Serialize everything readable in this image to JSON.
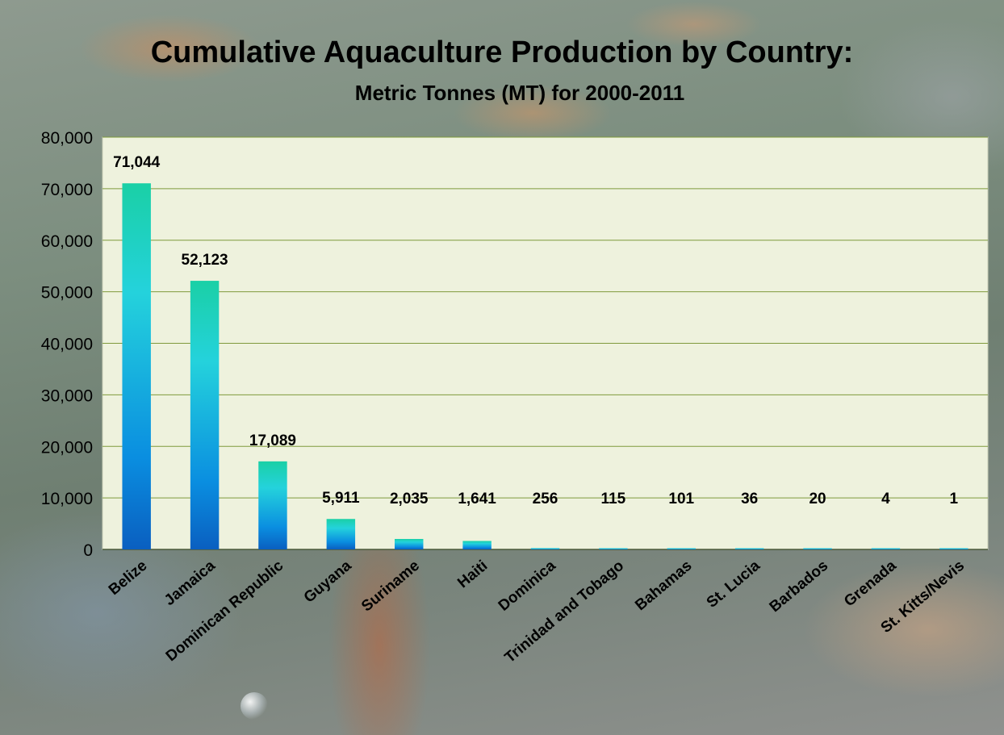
{
  "title": "Cumulative Aquaculture Production by Country:",
  "subtitle": "Metric Tonnes (MT) for 2000-2011",
  "colors": {
    "plot_background": "#eef2dd",
    "gridline": "#7f9a3c",
    "bar_top": "#1ad0a6",
    "bar_mid": "#24d2dc",
    "bar_bottom": "#0a5fc0"
  },
  "chart_data": {
    "type": "bar",
    "title": "Cumulative Aquaculture Production by Country:",
    "subtitle": "Metric Tonnes (MT) for 2000-2011",
    "xlabel": "",
    "ylabel": "",
    "ylim": [
      0,
      80000
    ],
    "yticks": [
      0,
      10000,
      20000,
      30000,
      40000,
      50000,
      60000,
      70000,
      80000
    ],
    "ytick_labels": [
      "0",
      "10,000",
      "20,000",
      "30,000",
      "40,000",
      "50,000",
      "60,000",
      "70,000",
      "80,000"
    ],
    "grid": true,
    "categories": [
      "Belize",
      "Jamaica",
      "Dominican Republic",
      "Guyana",
      "Suriname",
      "Haiti",
      "Dominica",
      "Trinidad and Tobago",
      "Bahamas",
      "St. Lucia",
      "Barbados",
      "Grenada",
      "St. Kitts/Nevis"
    ],
    "values": [
      71044,
      52123,
      17089,
      5911,
      2035,
      1641,
      256,
      115,
      101,
      36,
      20,
      4,
      1
    ],
    "value_labels": [
      "71,044",
      "52,123",
      "17,089",
      "5,911",
      "2,035",
      "1,641",
      "256",
      "115",
      "101",
      "36",
      "20",
      "4",
      "1"
    ]
  }
}
